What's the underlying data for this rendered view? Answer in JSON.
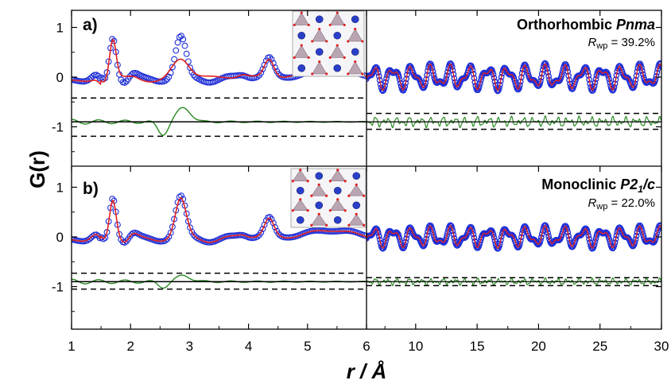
{
  "chart_data": {
    "type": "line",
    "xlabel": "r / Å",
    "ylabel": "G(r)",
    "x_ticks_left": [
      "1",
      "2",
      "3",
      "4",
      "5",
      "6"
    ],
    "x_ticks_right": [
      "10",
      "15",
      "20",
      "25",
      "30"
    ],
    "y_ticks": [
      "1",
      "0",
      "-1"
    ],
    "x_break": 6,
    "xlim_left": [
      1,
      6
    ],
    "xlim_right": [
      6,
      30
    ],
    "ylim": [
      -1.9,
      1.5
    ],
    "series_styles": {
      "observed": {
        "marker": "open-circle",
        "color": "#1f2fd6"
      },
      "calculated": {
        "line": "solid",
        "color": "#e0201e"
      },
      "difference": {
        "line": "solid",
        "color": "#2a8a23"
      }
    },
    "panels": [
      {
        "letter": "a)",
        "title_main": "Orthorhombic ",
        "title_italic": "Pnma",
        "rwp_R": "R",
        "rwp_sub": "wp",
        "rwp_value": " = 39.2%",
        "diff_baseline": -0.9,
        "diff_bounds_left": [
          -0.42,
          -1.19
        ],
        "diff_bounds_right": [
          -0.73,
          -1.05
        ],
        "diff_amplitude_left": 0.28,
        "diff_amplitude_right": 0.1
      },
      {
        "letter": "b)",
        "title_main": "Monoclinic ",
        "title_italic": "P",
        "title_mid": "2",
        "title_sub": "1",
        "title_tail": "/c",
        "rwp_R": "R",
        "rwp_sub": "wp",
        "rwp_value": " = 22.0%",
        "diff_baseline": -0.9,
        "diff_bounds_left": [
          -0.73,
          -1.05
        ],
        "diff_bounds_right": [
          -0.82,
          -0.98
        ],
        "diff_amplitude_left": 0.12,
        "diff_amplitude_right": 0.06
      }
    ],
    "low_r_peaks": [
      {
        "x": 1.42,
        "obs": 0.12,
        "calc": 0.05
      },
      {
        "x": 1.7,
        "obs": 0.78,
        "calc": 0.75
      },
      {
        "x": 2.05,
        "obs": 0.1,
        "calc": 0.04
      },
      {
        "x": 2.85,
        "obs": 0.82,
        "calc": 0.38
      },
      {
        "x": 3.9,
        "obs": 0.05,
        "calc": 0.05
      },
      {
        "x": 4.35,
        "obs": 0.37,
        "calc": 0.36
      },
      {
        "x": 5.4,
        "obs": 0.14,
        "calc": 0.14
      }
    ],
    "high_r": {
      "mean": 0.0,
      "amplitude": 0.28,
      "period": 1.55
    }
  }
}
